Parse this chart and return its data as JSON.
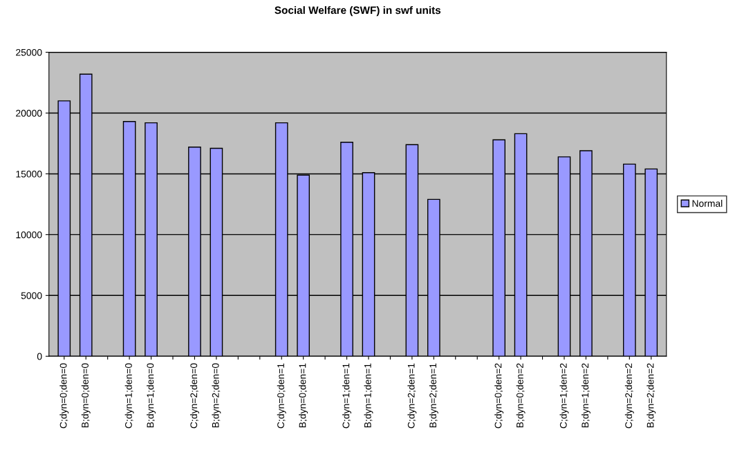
{
  "chart_data": {
    "type": "bar",
    "title": "Social Welfare (SWF) in swf units",
    "categories": [
      "C;dyn=0;den=0",
      "B;dyn=0;den=0",
      null,
      "C;dyn=1;den=0",
      "B;dyn=1;den=0",
      null,
      "C;dyn=2;den=0",
      "B;dyn=2;den=0",
      null,
      null,
      "C;dyn=0;den=1",
      "B;dyn=0;den=1",
      null,
      "C;dyn=1;den=1",
      "B;dyn=1;den=1",
      null,
      "C;dyn=2;den=1",
      "B;dyn=2;den=1",
      null,
      null,
      "C;dyn=0;den=2",
      "B;dyn=0;den=2",
      null,
      "C;dyn=1;den=2",
      "B;dyn=1;den=2",
      null,
      "C;dyn=2;den=2",
      "B;dyn=2;den=2"
    ],
    "series": [
      {
        "name": "Normal",
        "color": "#9999ff",
        "values": [
          21000,
          23200,
          null,
          19300,
          19200,
          null,
          17200,
          17100,
          null,
          null,
          19200,
          14900,
          null,
          17600,
          15100,
          null,
          17400,
          12900,
          null,
          null,
          17800,
          18300,
          null,
          16400,
          16900,
          null,
          15800,
          15400
        ]
      }
    ],
    "ylim": [
      0,
      25000
    ],
    "yticks": [
      0,
      5000,
      10000,
      15000,
      20000,
      25000
    ],
    "grid": "y",
    "legend": "right"
  }
}
